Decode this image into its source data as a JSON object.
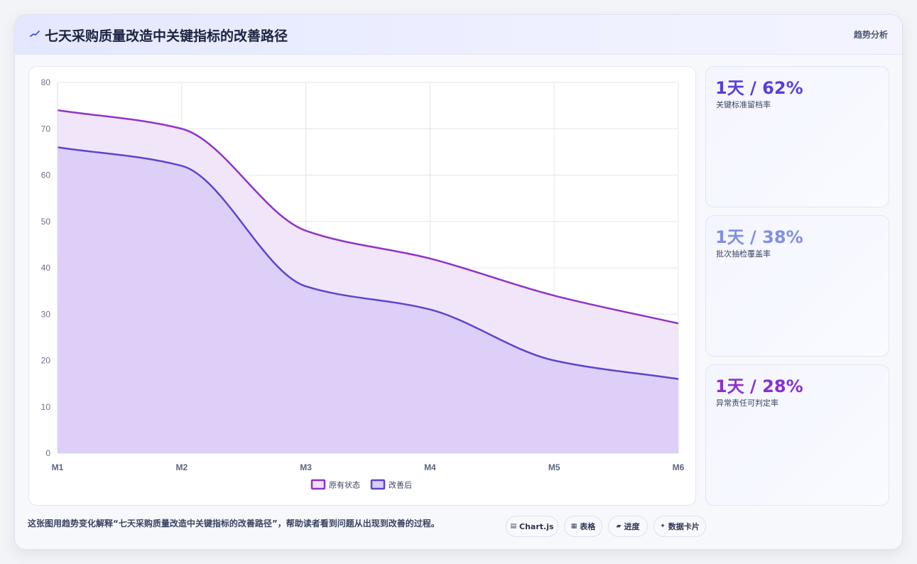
{
  "header": {
    "title": "七天采购质量改造中关键指标的改善路径",
    "tag": "趋势分析"
  },
  "kpis": [
    {
      "value": "1天 / 62%",
      "label": "关键标准留档率",
      "color": "#5a3fd8"
    },
    {
      "value": "1天 / 38%",
      "label": "批次抽检覆盖率",
      "color": "#7f8fe6"
    },
    {
      "value": "1天 / 28%",
      "label": "异常责任可判定率",
      "color": "#8b2fd0"
    }
  ],
  "footer": {
    "description": "这张图用趋势变化解释“七天采购质量改造中关键指标的改善路径”，帮助读者看到问题从出现到改善的过程。",
    "pills": [
      {
        "icon": "▤",
        "label": "Chart.js",
        "icon_name": "chart-icon"
      },
      {
        "icon": "▦",
        "label": "表格",
        "icon_name": "table-icon"
      },
      {
        "icon": "▰",
        "label": "进度",
        "icon_name": "progress-icon"
      },
      {
        "icon": "✦",
        "label": "数据卡片",
        "icon_name": "sparkle-icon"
      }
    ]
  },
  "chart_data": {
    "type": "area",
    "categories": [
      "M1",
      "M2",
      "M3",
      "M4",
      "M5",
      "M6"
    ],
    "series": [
      {
        "name": "原有状态",
        "values": [
          74,
          70,
          48,
          42,
          34,
          28
        ],
        "color": "#8e34c8",
        "fill": "#efe2f8"
      },
      {
        "name": "改善后",
        "values": [
          66,
          62,
          36,
          31,
          20,
          16
        ],
        "color": "#5b45cf",
        "fill": "#dcccf7"
      }
    ],
    "ylim": [
      0,
      80
    ],
    "yticks": [
      0,
      10,
      20,
      30,
      40,
      50,
      60,
      70,
      80
    ],
    "grid": true,
    "legend": "bottom"
  }
}
